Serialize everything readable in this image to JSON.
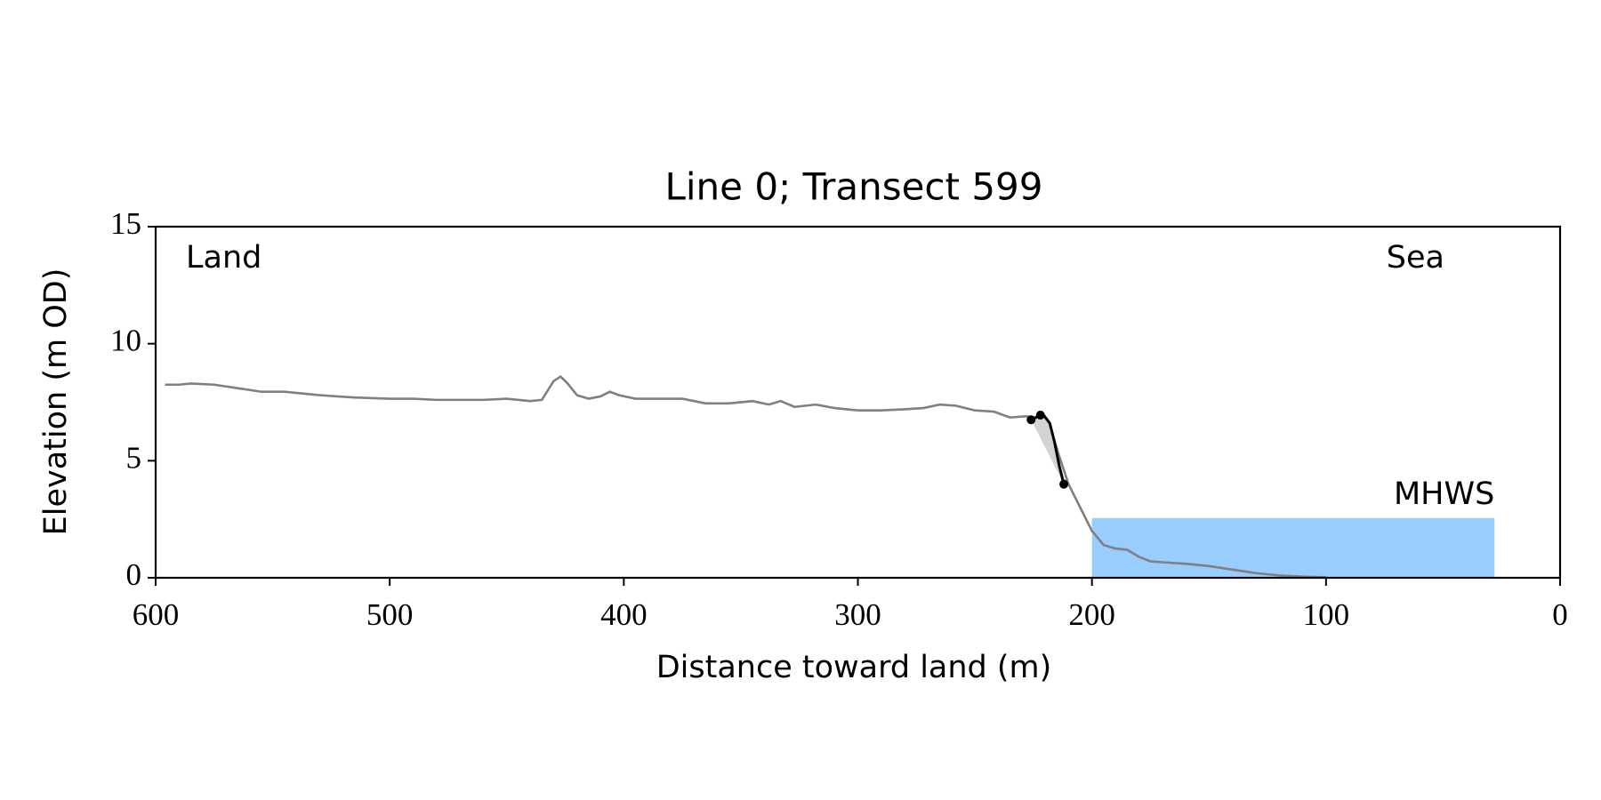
{
  "chart_data": {
    "type": "line",
    "title": "Line 0; Transect 599",
    "xlabel": "Distance toward land (m)",
    "ylabel": "Elevation (m OD)",
    "annotations": [
      "Land",
      "Sea"
    ],
    "xlim": [
      600,
      0
    ],
    "ylim": [
      0,
      15
    ],
    "xticks": [
      600,
      500,
      400,
      300,
      200,
      100,
      0
    ],
    "yticks": [
      0,
      5,
      10,
      15
    ],
    "series": [
      {
        "color": "#808080",
        "x": [
          596,
          590,
          585,
          575,
          565,
          555,
          545,
          530,
          515,
          500,
          490,
          480,
          470,
          460,
          450,
          440,
          435,
          430,
          427,
          424,
          420,
          415,
          410,
          406,
          402,
          395,
          385,
          375,
          365,
          355,
          345,
          338,
          333,
          327,
          318,
          310,
          300,
          290,
          280,
          272,
          265,
          258,
          250,
          242,
          235,
          228,
          224,
          221,
          218,
          214,
          210,
          205,
          200,
          195,
          190,
          185,
          180,
          175,
          168,
          160,
          150,
          140,
          130,
          120,
          110,
          100
        ],
        "values": [
          8.25,
          8.25,
          8.3,
          8.25,
          8.1,
          7.95,
          7.95,
          7.8,
          7.7,
          7.65,
          7.65,
          7.6,
          7.6,
          7.6,
          7.65,
          7.55,
          7.6,
          8.4,
          8.6,
          8.3,
          7.8,
          7.65,
          7.75,
          7.95,
          7.8,
          7.65,
          7.65,
          7.65,
          7.45,
          7.45,
          7.55,
          7.4,
          7.55,
          7.3,
          7.4,
          7.25,
          7.15,
          7.15,
          7.2,
          7.25,
          7.4,
          7.35,
          7.15,
          7.1,
          6.85,
          6.9,
          6.8,
          6.9,
          6.5,
          5.2,
          4.0,
          3.0,
          2.0,
          1.4,
          1.25,
          1.2,
          0.9,
          0.7,
          0.65,
          0.6,
          0.5,
          0.35,
          0.2,
          0.1,
          0.05,
          0.02
        ]
      },
      {
        "color": "#000000",
        "x": [
          226,
          224,
          221,
          218,
          216,
          214,
          212
        ],
        "values": [
          6.75,
          6.85,
          7.0,
          6.6,
          5.8,
          4.8,
          4.0
        ],
        "fill": "#d3d3d3"
      },
      {
        "color": "#000000",
        "markers": true,
        "x": [
          226,
          222,
          212
        ],
        "values": [
          6.75,
          6.95,
          4.0
        ]
      }
    ],
    "mhws": {
      "label": "MHWS",
      "value": 2.55,
      "x_range": [
        200,
        28
      ],
      "color": "#99ccff",
      "label_color": "#6699cc"
    }
  }
}
